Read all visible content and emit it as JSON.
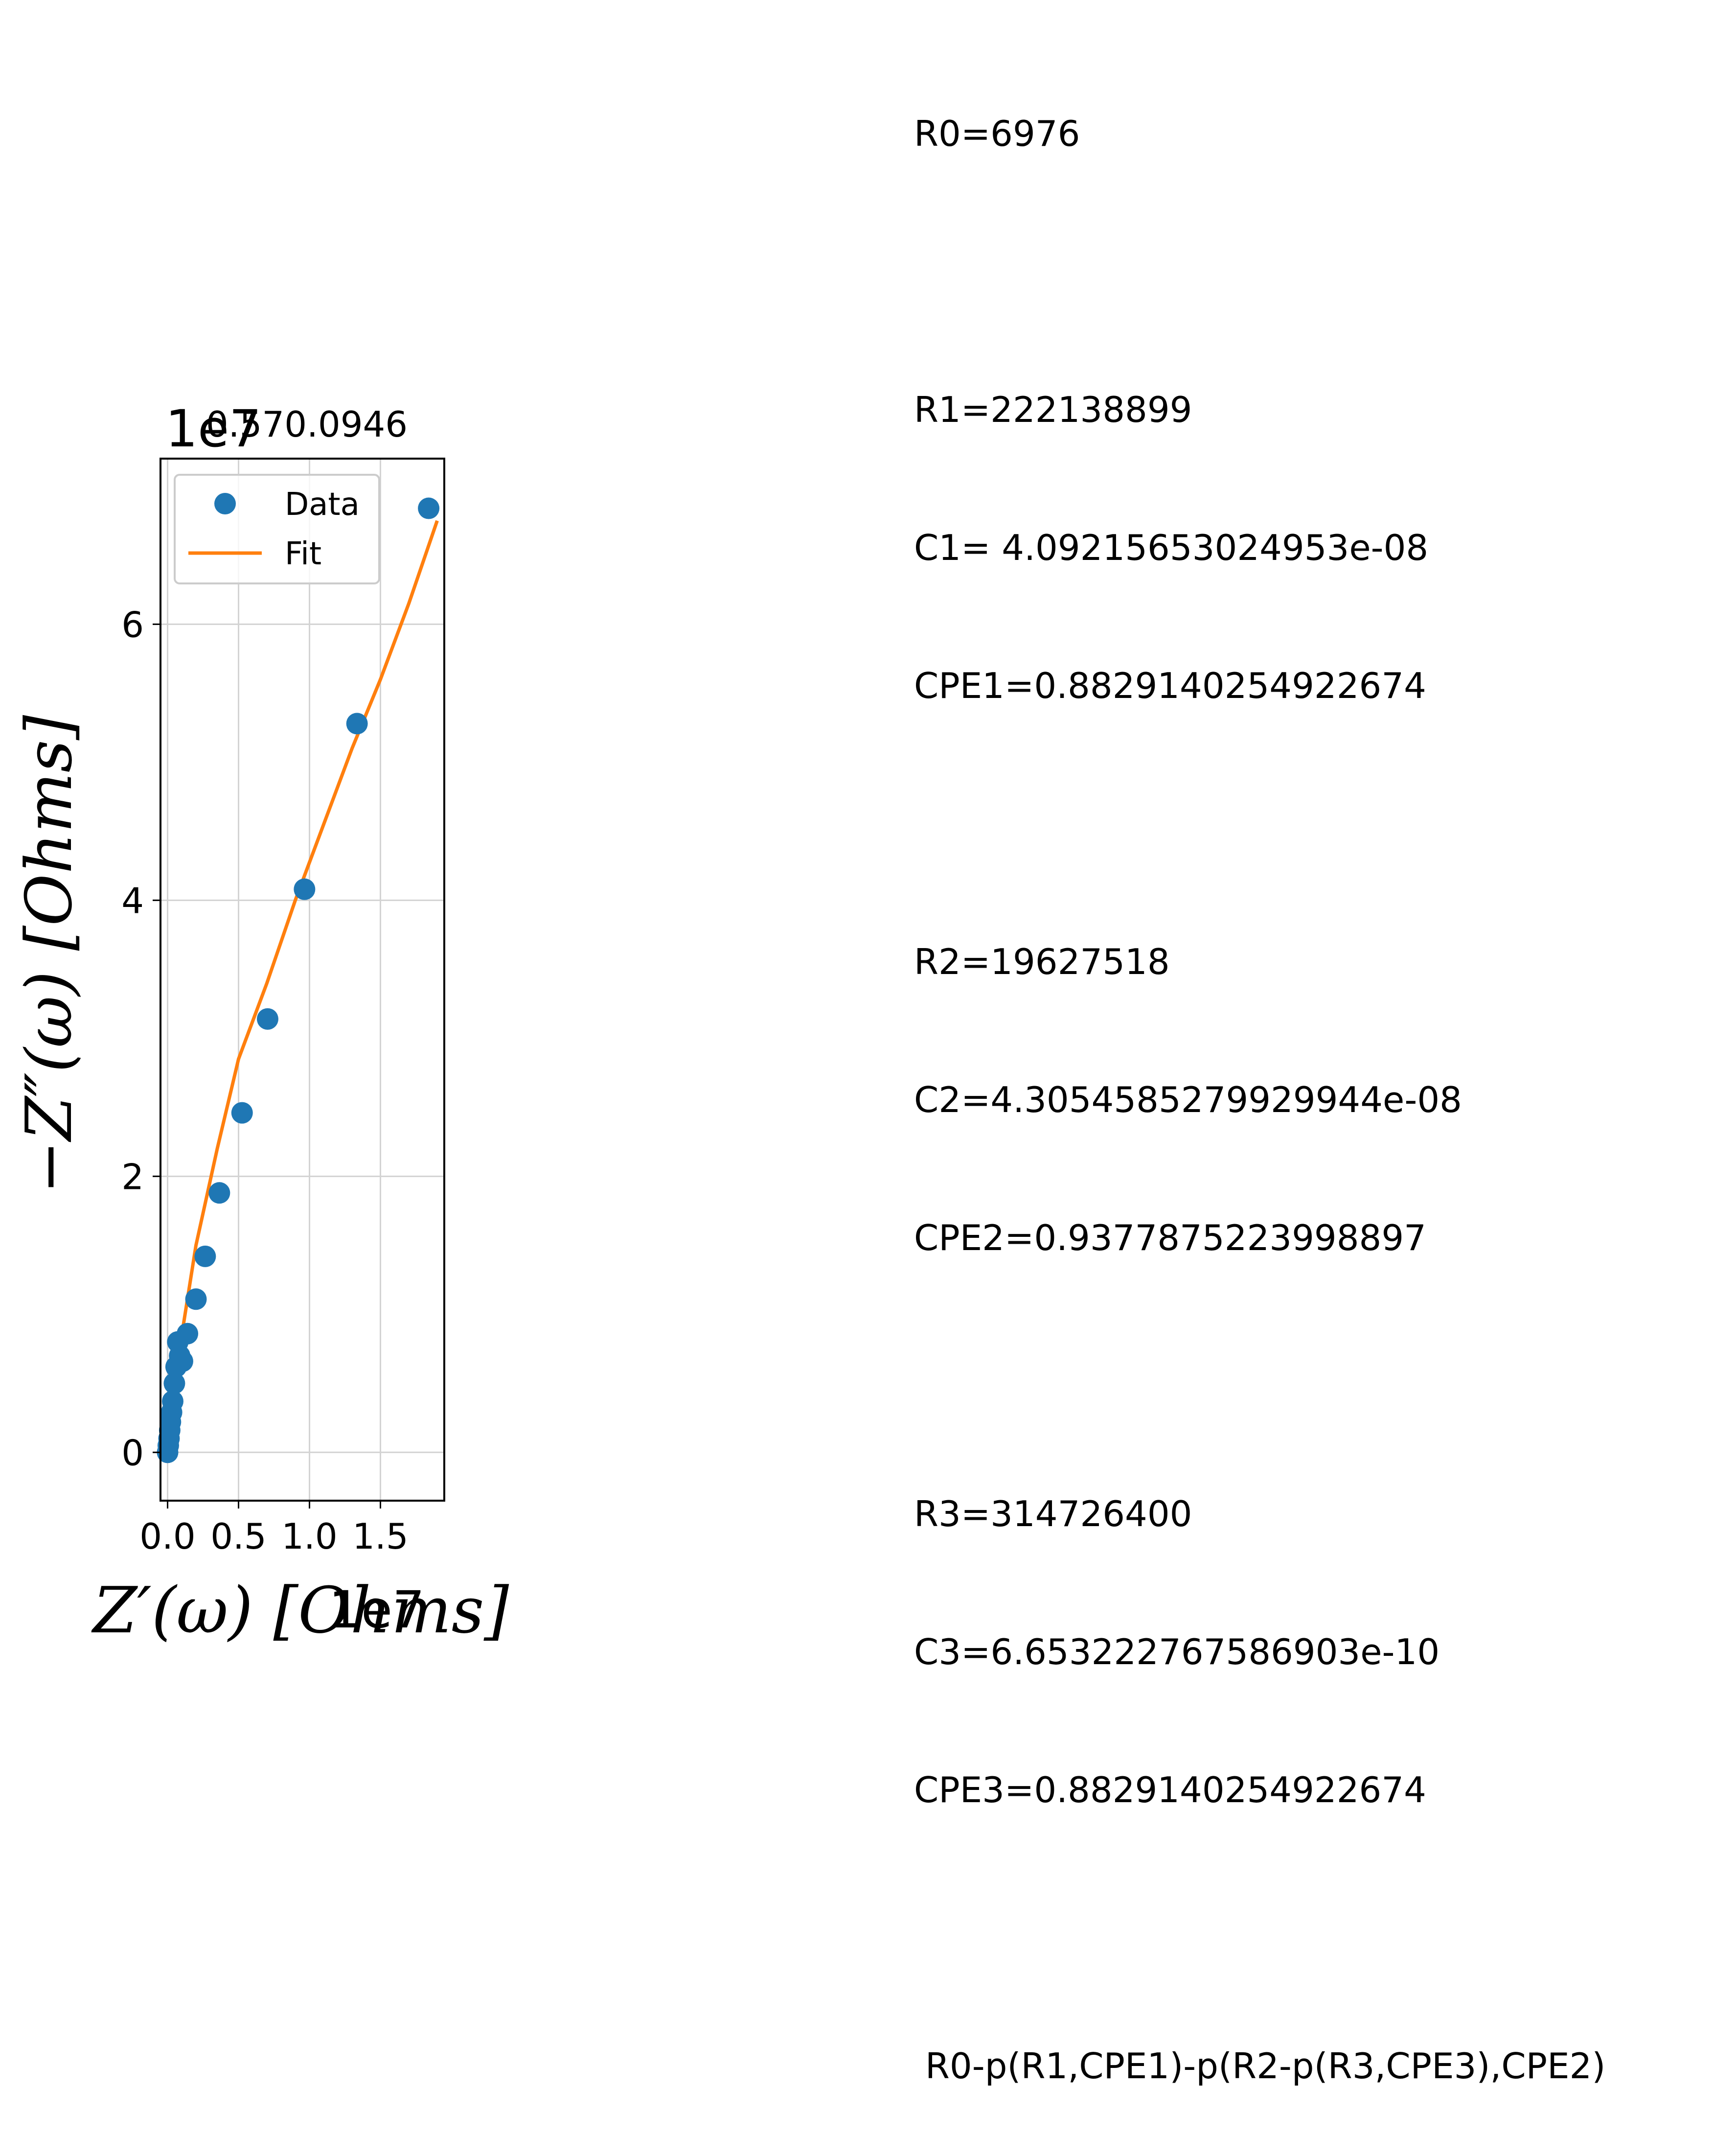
{
  "colors": {
    "data_marker": "#1f77b4",
    "fit_line": "#ff7f0e",
    "grid": "#d3d3d3",
    "axes": "#000000",
    "background": "#ffffff"
  },
  "chart_data": {
    "type": "scatter",
    "title": "0.570.0946",
    "xlabel": "Z′(ω) [Ohms]",
    "ylabel": "−Z″(ω) [Ohms]",
    "x_offset_text": "1e7",
    "y_offset_text": "1e7",
    "xlim": [
      -0.05,
      1.95
    ],
    "ylim": [
      -0.35,
      7.2
    ],
    "x_ticks": [
      0.0,
      0.5,
      1.0,
      1.5
    ],
    "x_tick_labels": [
      "0.0",
      "0.5",
      "1.0",
      "1.5"
    ],
    "y_ticks": [
      0,
      2,
      4,
      6
    ],
    "y_tick_labels": [
      "0",
      "2",
      "4",
      "6"
    ],
    "grid": true,
    "legend": {
      "location": "upper left",
      "entries": [
        "Data",
        "Fit"
      ]
    },
    "series": [
      {
        "name": "Data",
        "kind": "markers",
        "x": [
          0.0,
          0.005,
          0.01,
          0.015,
          0.02,
          0.028,
          0.036,
          0.048,
          0.06,
          0.072,
          0.085,
          0.105,
          0.14,
          0.2,
          0.265,
          0.365,
          0.525,
          0.705,
          0.965,
          1.335,
          1.84
        ],
        "y": [
          0.0,
          0.05,
          0.1,
          0.16,
          0.22,
          0.29,
          0.37,
          0.5,
          0.62,
          0.8,
          0.7,
          0.66,
          0.86,
          1.11,
          1.42,
          1.88,
          2.46,
          3.14,
          4.08,
          5.28,
          6.84
        ]
      },
      {
        "name": "Fit",
        "kind": "line",
        "x": [
          0.0,
          0.05,
          0.1,
          0.2,
          0.35,
          0.5,
          0.7,
          0.9,
          1.1,
          1.3,
          1.5,
          1.7,
          1.9
        ],
        "y": [
          0.0,
          0.45,
          0.85,
          1.5,
          2.2,
          2.85,
          3.4,
          4.0,
          4.55,
          5.1,
          5.6,
          6.15,
          6.75
        ]
      }
    ]
  },
  "annotations": {
    "r0": "R0=6976",
    "r1": "R1=222138899",
    "c1": "C1= 4.09215653024953e-08",
    "cpe1": "CPE1=0.8829140254922674",
    "r2": "R2=19627518",
    "c2": "C2=4.3054585279929944e-08",
    "cpe2": "CPE2=0.9377875223998897",
    "r3": "R3=314726400",
    "c3": "C3=6.653222767586903e-10",
    "cpe3": "CPE3=0.8829140254922674",
    "circuit": " R0-p(R1,CPE1)-p(R2-p(R3,CPE3),CPE2)"
  }
}
